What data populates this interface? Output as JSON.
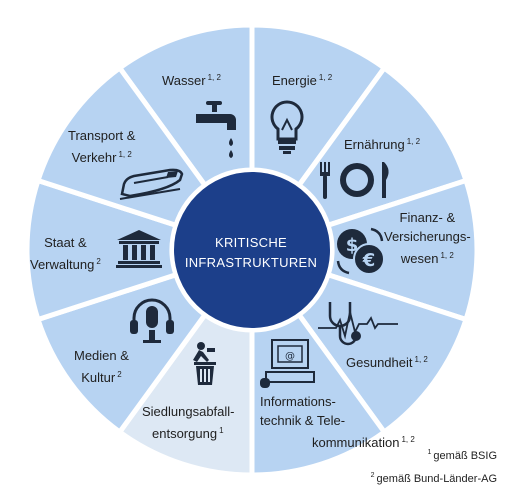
{
  "center": {
    "line1": "KRITISCHE",
    "line2": "INFRASTRUKTUREN"
  },
  "sectors": [
    {
      "id": "wasser",
      "lines": [
        "Wasser"
      ],
      "sup": "1, 2",
      "icon": "faucet-icon"
    },
    {
      "id": "energie",
      "lines": [
        "Energie"
      ],
      "sup": "1, 2",
      "icon": "lightbulb-icon"
    },
    {
      "id": "ernaehrung",
      "lines": [
        "Ernährung"
      ],
      "sup": "1, 2",
      "icon": "plate-cutlery-icon"
    },
    {
      "id": "finanz",
      "lines": [
        "Finanz- &",
        "Versicherungs-",
        "wesen"
      ],
      "sup": "1, 2",
      "icon": "currency-exchange-icon"
    },
    {
      "id": "gesundheit",
      "lines": [
        "Gesundheit"
      ],
      "sup": "1, 2",
      "icon": "stethoscope-icon"
    },
    {
      "id": "it",
      "lines": [
        "Informations-",
        "technik & Tele-",
        "kommunikation"
      ],
      "sup": "1, 2",
      "icon": "computer-email-icon"
    },
    {
      "id": "siedlung",
      "lines": [
        "Siedlungsabfall-",
        "entsorgung"
      ],
      "sup": "1",
      "icon": "trash-bin-icon"
    },
    {
      "id": "medien",
      "lines": [
        "Medien &",
        "Kultur"
      ],
      "sup": "2",
      "icon": "microphone-headphones-icon"
    },
    {
      "id": "staat",
      "lines": [
        "Staat &",
        "Verwaltung"
      ],
      "sup": "2",
      "icon": "government-building-icon"
    },
    {
      "id": "transport",
      "lines": [
        "Transport &",
        "Verkehr"
      ],
      "sup": "1, 2",
      "icon": "train-icon"
    }
  ],
  "footnotes": [
    {
      "mark": "1",
      "text": "gemäß BSIG"
    },
    {
      "mark": "2",
      "text": "gemäß Bund-Länder-AG"
    }
  ],
  "colors": {
    "segment": "#b7d3f2",
    "segment_alt": "#dde8f4",
    "center": "#1c3f8a",
    "icon": "#1e2a3c"
  }
}
